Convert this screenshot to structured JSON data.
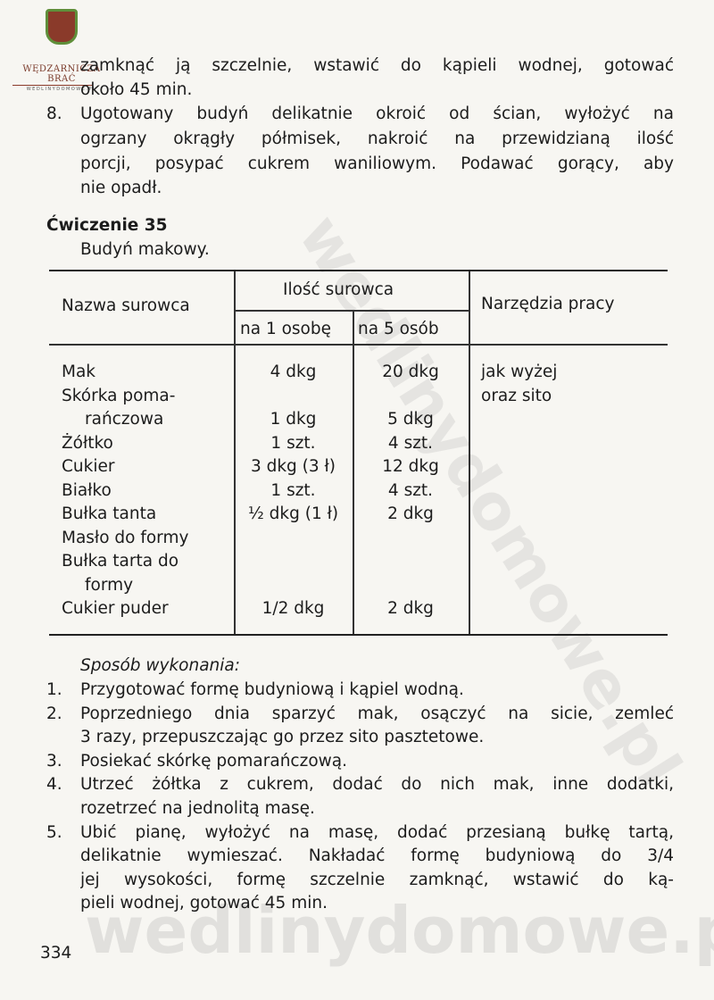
{
  "logo": {
    "line1": "WĘDZARNICZA BRAĆ",
    "line2": "WEDLINYDOMOWE.PL"
  },
  "watermark": {
    "diagonal": "wedlinydomowe.pl",
    "bottom": "wedlinydomowe.pl"
  },
  "previous_steps": {
    "continuation_lines": [
      "zamknąć ją szczelnie, wstawić do kąpieli wodnej, gotować",
      "około 45 min."
    ],
    "step8": {
      "number": "8.",
      "lines": [
        "Ugotowany budyń delikatnie okroić od ścian, wyłożyć na",
        "ogrzany okrągły półmisek, nakroić na przewidzianą ilość",
        "porcji, posypać cukrem waniliowym. Podawać gorący, aby",
        "nie opadł."
      ]
    }
  },
  "exercise": {
    "title": "Ćwiczenie 35",
    "subtitle": "Budyń makowy."
  },
  "table": {
    "headers": {
      "name": "Nazwa surowca",
      "quantity": "Ilość surowca",
      "per1": "na 1 osobę",
      "per5": "na 5 osób",
      "tools": "Narzędzia pracy"
    },
    "rows": [
      {
        "name": [
          "Mak"
        ],
        "per1": "4 dkg",
        "per5": "20 dkg"
      },
      {
        "name": [
          "Skórka poma-",
          "rańczowa"
        ],
        "per1": "1 dkg",
        "per5": "5 dkg"
      },
      {
        "name": [
          "Żółtko"
        ],
        "per1": "1 szt.",
        "per5": "4 szt."
      },
      {
        "name": [
          "Cukier"
        ],
        "per1": "3 dkg (3 ł)",
        "per5": "12 dkg"
      },
      {
        "name": [
          "Białko"
        ],
        "per1": "1 szt.",
        "per5": "4 szt."
      },
      {
        "name": [
          "Bułka tanta"
        ],
        "per1": "½ dkg (1 ł)",
        "per5": "2 dkg"
      },
      {
        "name": [
          "Masło do formy"
        ],
        "per1": "",
        "per5": ""
      },
      {
        "name": [
          "Bułka tarta do",
          "formy"
        ],
        "per1": "",
        "per5": ""
      },
      {
        "name": [
          "Cukier puder"
        ],
        "per1": "1/2 dkg",
        "per5": "2 dkg"
      }
    ],
    "tools": [
      "jak wyżej",
      "oraz sito"
    ]
  },
  "method": {
    "heading": "Sposób wykonania:",
    "steps": [
      {
        "number": "1.",
        "lines": [
          "Przygotować formę budyniową i kąpiel wodną."
        ]
      },
      {
        "number": "2.",
        "lines": [
          "Poprzedniego dnia sparzyć mak, osączyć na sicie, zemleć",
          "3 razy, przepuszczając go przez sito pasztetowe."
        ]
      },
      {
        "number": "3.",
        "lines": [
          "Posiekać skórkę pomarańczową."
        ]
      },
      {
        "number": "4.",
        "lines": [
          "Utrzeć żółtka z cukrem, dodać do nich mak, inne dodatki,",
          "rozetrzeć na jednolitą masę."
        ]
      },
      {
        "number": "5.",
        "lines": [
          "Ubić pianę, wyłożyć na masę, dodać przesianą bułkę tartą,",
          "delikatnie wymieszać. Nakładać formę budyniową do 3/4",
          "jej wysokości, formę szczelnie zamknąć, wstawić do ką-",
          "pieli wodnej, gotować 45 min."
        ]
      }
    ]
  },
  "page_number": "334"
}
